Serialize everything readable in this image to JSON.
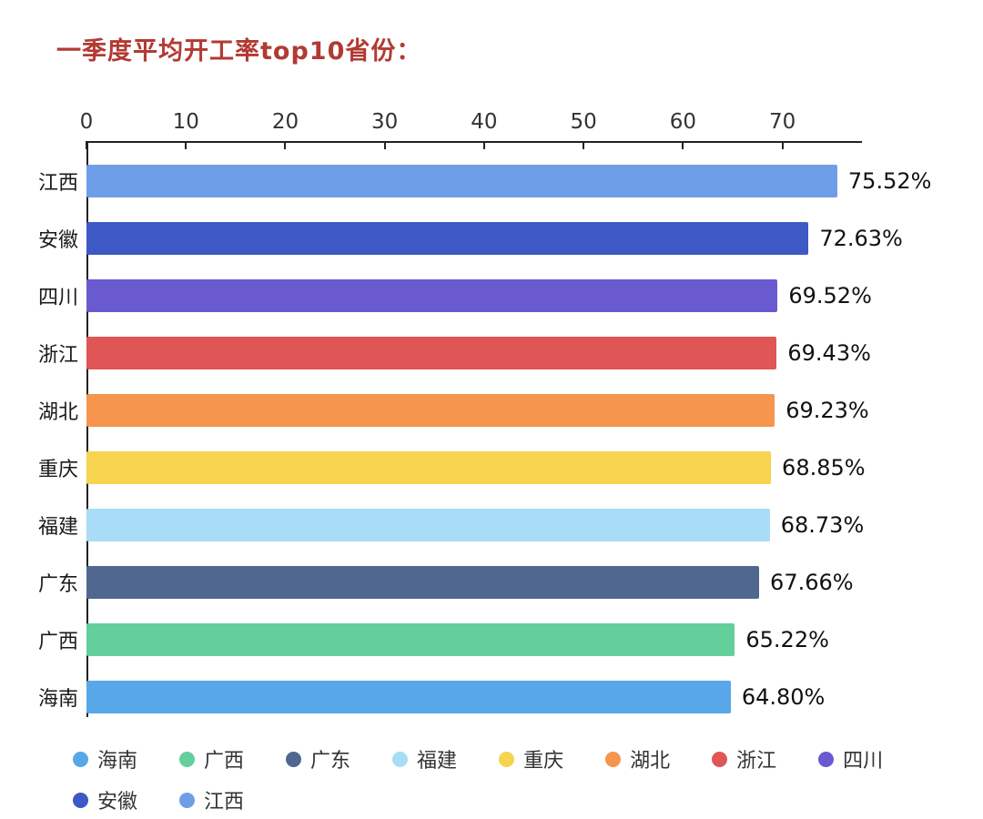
{
  "title": "一季度平均开工率top10省份：",
  "colors": {
    "title": "#b23a33",
    "axis": "#222222",
    "tick_label": "#333333",
    "value_label": "#111111"
  },
  "chart_data": {
    "type": "bar",
    "orientation": "horizontal",
    "title": "一季度平均开工率top10省份：",
    "categories": [
      "江西",
      "安徽",
      "四川",
      "浙江",
      "湖北",
      "重庆",
      "福建",
      "广东",
      "广西",
      "海南"
    ],
    "values": [
      75.52,
      72.63,
      69.52,
      69.43,
      69.23,
      68.85,
      68.73,
      67.66,
      65.22,
      64.8
    ],
    "value_labels": [
      "75.52%",
      "72.63%",
      "69.52%",
      "69.43%",
      "69.23%",
      "68.85%",
      "68.73%",
      "67.66%",
      "65.22%",
      "64.80%"
    ],
    "bar_colors": [
      "#6f9ee8",
      "#3d59c6",
      "#6a5ad0",
      "#e05555",
      "#f6954d",
      "#f6d44f",
      "#a8dcf7",
      "#50678f",
      "#63cf9b",
      "#58a7e8"
    ],
    "xlim": [
      0,
      78
    ],
    "x_ticks": [
      0,
      10,
      20,
      30,
      40,
      50,
      60,
      70
    ],
    "axis_position": "top",
    "grid": false,
    "legend_position": "bottom",
    "legend": [
      {
        "label": "海南",
        "color": "#58a7e8"
      },
      {
        "label": "广西",
        "color": "#63cf9b"
      },
      {
        "label": "广东",
        "color": "#50678f"
      },
      {
        "label": "福建",
        "color": "#a8dcf7"
      },
      {
        "label": "重庆",
        "color": "#f6d44f"
      },
      {
        "label": "湖北",
        "color": "#f6954d"
      },
      {
        "label": "浙江",
        "color": "#e05555"
      },
      {
        "label": "四川",
        "color": "#6a5ad0"
      },
      {
        "label": "安徽",
        "color": "#3d59c6"
      },
      {
        "label": "江西",
        "color": "#6f9ee8"
      }
    ]
  }
}
